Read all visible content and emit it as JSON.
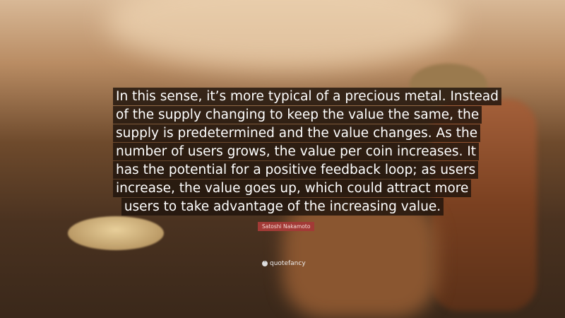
{
  "quote": {
    "lines": [
      "In this sense, it’s more typical of a precious metal. Instead",
      "of the supply changing to keep the value the same, the",
      "supply is predetermined and the value changes. As the",
      "number of users grows, the value per coin increases. It",
      "has the potential for a positive feedback loop; as users",
      "increase, the value goes up, which could attract more",
      "users to take advantage of the increasing value."
    ],
    "author": "Satoshi Nakamoto"
  },
  "brand": {
    "name": "quotefancy",
    "icon": "quote-mark-icon"
  }
}
